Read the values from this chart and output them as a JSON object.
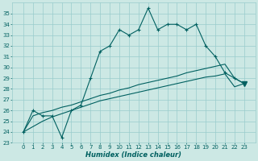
{
  "title": "",
  "xlabel": "Humidex (Indice chaleur)",
  "ylabel": "",
  "x_values": [
    0,
    1,
    2,
    3,
    4,
    5,
    6,
    7,
    8,
    9,
    10,
    11,
    12,
    13,
    14,
    15,
    16,
    17,
    18,
    19,
    20,
    21,
    22,
    23
  ],
  "line1_y": [
    24.0,
    26.0,
    25.5,
    25.5,
    23.5,
    26.0,
    26.5,
    29.0,
    31.5,
    32.0,
    33.5,
    33.0,
    33.5,
    35.5,
    33.5,
    34.0,
    34.0,
    33.5,
    34.0,
    32.0,
    31.0,
    29.5,
    29.0,
    28.5
  ],
  "line2_y": [
    24.0,
    25.5,
    25.8,
    26.0,
    26.3,
    26.5,
    26.8,
    27.1,
    27.4,
    27.6,
    27.9,
    28.1,
    28.4,
    28.6,
    28.8,
    29.0,
    29.2,
    29.5,
    29.7,
    29.9,
    30.1,
    30.3,
    29.0,
    28.5
  ],
  "line3_y": [
    24.0,
    24.5,
    25.0,
    25.4,
    25.7,
    26.0,
    26.3,
    26.6,
    26.9,
    27.1,
    27.3,
    27.5,
    27.7,
    27.9,
    28.1,
    28.3,
    28.5,
    28.7,
    28.9,
    29.1,
    29.2,
    29.4,
    28.2,
    28.5
  ],
  "tri_x": [
    23
  ],
  "tri_y": [
    28.5
  ],
  "bg_color": "#cce8e4",
  "line_color": "#006060",
  "grid_color": "#99cccc",
  "ylim": [
    23,
    36
  ],
  "yticks": [
    23,
    24,
    25,
    26,
    27,
    28,
    29,
    30,
    31,
    32,
    33,
    34,
    35
  ],
  "xticks": [
    0,
    1,
    2,
    3,
    4,
    5,
    6,
    7,
    8,
    9,
    10,
    11,
    12,
    13,
    14,
    15,
    16,
    17,
    18,
    19,
    20,
    21,
    22,
    23
  ],
  "tick_fontsize": 5.0,
  "xlabel_fontsize": 6.0
}
